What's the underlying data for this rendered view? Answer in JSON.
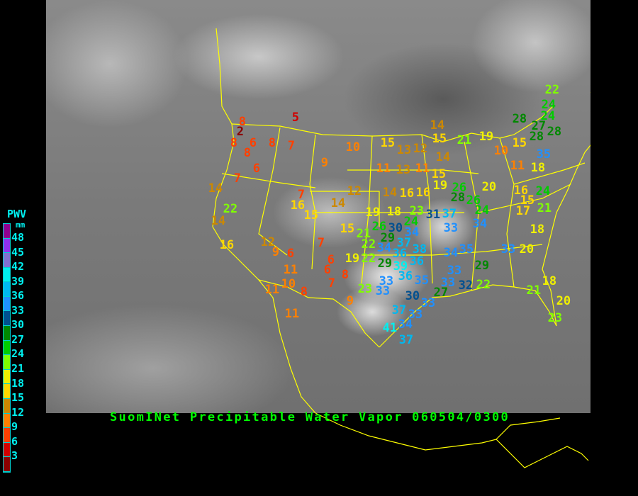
{
  "title": "SuomINet Precipitable Water Vapor 060504/0300",
  "legend": {
    "title": "PWV",
    "unit": "mm",
    "ticks": [
      "48",
      "45",
      "42",
      "39",
      "36",
      "33",
      "30",
      "27",
      "24",
      "21",
      "18",
      "15",
      "12",
      "9",
      "6",
      "3"
    ],
    "colors": [
      "#900090",
      "#9030f0",
      "#8070d0",
      "#00f0f0",
      "#00b8f0",
      "#2090ff",
      "#005090",
      "#008800",
      "#00cc00",
      "#80ff00",
      "#f0f000",
      "#ffd700",
      "#cc8800",
      "#ff8000",
      "#ff4000",
      "#d00000",
      "#8b0000"
    ]
  },
  "stations": [
    5,
    8,
    2,
    8,
    6,
    8,
    8,
    7,
    6,
    7,
    9,
    10,
    14,
    22,
    14,
    7,
    16,
    15,
    14,
    12,
    15,
    13,
    12,
    14,
    15,
    21,
    19,
    10,
    15,
    28,
    22,
    24,
    24,
    27,
    28,
    28,
    35,
    11,
    13,
    11,
    14,
    15,
    19,
    14,
    16,
    16,
    26,
    28,
    26,
    20,
    11,
    18,
    16,
    15,
    24,
    17,
    21,
    18,
    33,
    20,
    18,
    21,
    20,
    23,
    19,
    18,
    23,
    24,
    31,
    37,
    24,
    34,
    33,
    15,
    21,
    26,
    30,
    29,
    34,
    22,
    37,
    34,
    36,
    38,
    36,
    19,
    22,
    29,
    39,
    33,
    36,
    35,
    34,
    35,
    33,
    29,
    23,
    33,
    30,
    33,
    27,
    33,
    32,
    22,
    37,
    33,
    41,
    34,
    37,
    16,
    12,
    9,
    6,
    11,
    10,
    11,
    8,
    7,
    6,
    6,
    8,
    7,
    9,
    11
  ]
}
